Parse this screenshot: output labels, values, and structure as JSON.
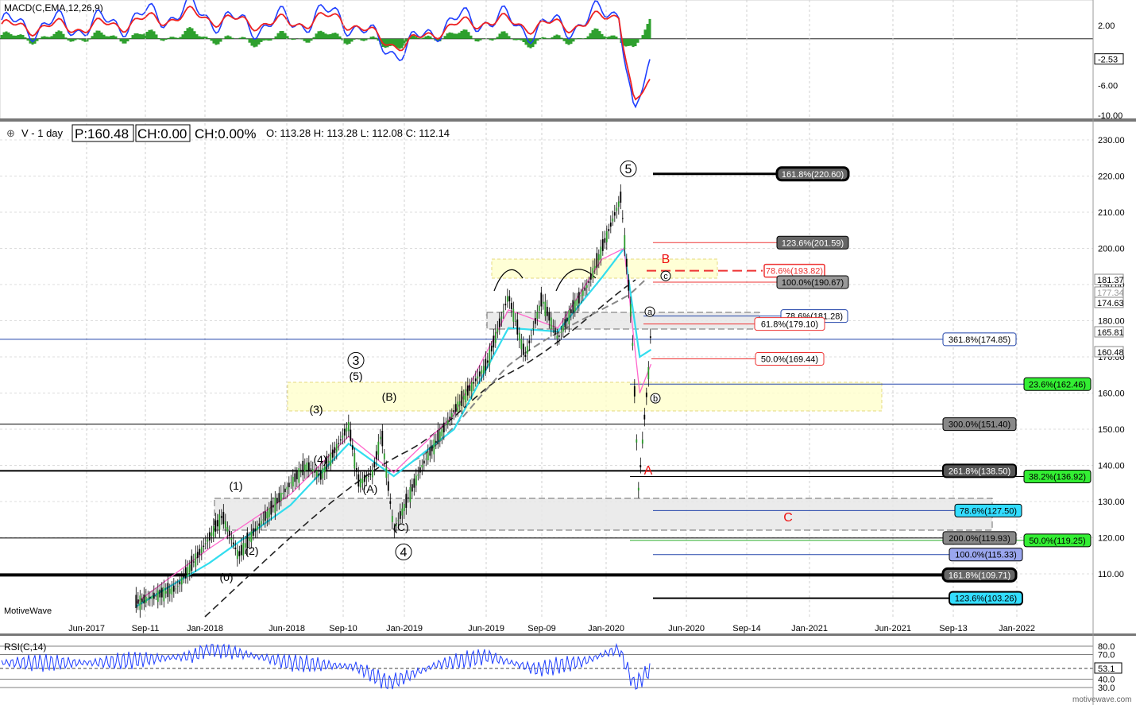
{
  "header": {
    "symbol_label": "V - 1 day",
    "price_label": "P:160.48",
    "change_label": "CH:0.00",
    "change_pct_label": "CH:0.00%",
    "ohlc_label": "O: 113.28  H: 113.28  L: 112.08  C: 112.14"
  },
  "watermark": "MotiveWave",
  "footer_credit": "motivewave.com",
  "colors": {
    "price_up": "#000000",
    "ema_fast": "#ff66cc",
    "ema_slow": "#33ddee",
    "macd_line": "#1f3fff",
    "signal_line": "#ee2222",
    "histogram": "#2ea02e",
    "rsi_line": "#1f3fff",
    "zone_yellow": "#ffffcc",
    "zone_grey": "#e8e8e8"
  },
  "chart_data": [
    {
      "type": "line",
      "title": "MACD(C,EMA,12,26,9)",
      "ytick_labels": [
        "2.00",
        "-2.53",
        "-6.00",
        "-10.00"
      ],
      "series": [
        {
          "name": "MACD",
          "x": [
            "2017-06",
            "2017-09",
            "2017-12",
            "2018-03",
            "2018-06",
            "2018-09",
            "2018-11",
            "2019-01",
            "2019-03",
            "2019-06",
            "2019-09",
            "2019-12",
            "2020-02",
            "2020-03",
            "2020-04"
          ],
          "values": [
            2.0,
            3.0,
            4.0,
            2.0,
            2.5,
            3.5,
            0.0,
            -1.5,
            2.0,
            3.0,
            1.5,
            2.5,
            4.5,
            -11.0,
            -3.0
          ]
        },
        {
          "name": "Signal",
          "x": [
            "2017-06",
            "2017-09",
            "2017-12",
            "2018-03",
            "2018-06",
            "2018-09",
            "2018-11",
            "2019-01",
            "2019-03",
            "2019-06",
            "2019-09",
            "2019-12",
            "2020-02",
            "2020-03",
            "2020-04"
          ],
          "values": [
            1.8,
            2.6,
            3.4,
            2.4,
            2.3,
            3.1,
            0.6,
            -0.8,
            1.4,
            2.7,
            1.9,
            2.2,
            3.8,
            -9.0,
            -5.5
          ]
        }
      ]
    },
    {
      "type": "line",
      "title": "V - 1 day",
      "xtick_labels": [
        "Jun-2017",
        "Sep-11",
        "Jan-2018",
        "Jun-2018",
        "Sep-10",
        "Jan-2019",
        "Jun-2019",
        "Sep-09",
        "Jan-2020",
        "Jun-2020",
        "Sep-14",
        "Jan-2021",
        "Jun-2021",
        "Sep-13",
        "Jan-2022"
      ],
      "ytick_labels": [
        "230.00",
        "220.00",
        "210.00",
        "200.00",
        "190.00",
        "180.00",
        "170.00",
        "160.00",
        "150.00",
        "140.00",
        "130.00",
        "120.00",
        "110.00"
      ],
      "price_tags": [
        "181.37",
        "177.34",
        "174.63",
        "165.81",
        "160.48"
      ],
      "series": [
        {
          "name": "Price",
          "x": [
            "2017-09-01",
            "2017-11-15",
            "2018-01-15",
            "2018-02-08",
            "2018-03-10",
            "2018-04-05",
            "2018-06-15",
            "2018-07-15",
            "2018-08-10",
            "2018-10-01",
            "2018-10-20",
            "2018-11-15",
            "2018-12-01",
            "2018-12-24",
            "2019-02-15",
            "2019-04-15",
            "2019-06-15",
            "2019-07-25",
            "2019-08-25",
            "2019-09-25",
            "2019-10-25",
            "2019-11-20",
            "2019-12-20",
            "2020-01-15",
            "2020-02-19",
            "2020-03-10",
            "2020-03-23",
            "2020-04-01",
            "2020-04-10",
            "2020-04-15"
          ],
          "values": [
            102,
            106,
            120,
            126,
            115,
            121,
            135,
            140,
            137,
            151,
            135,
            138,
            149,
            122,
            140,
            155,
            168,
            187,
            170,
            186,
            175,
            183,
            190,
            200,
            214,
            180,
            133,
            150,
            165,
            178
          ]
        },
        {
          "name": "EMA fast",
          "x": [
            "2017-09-01",
            "2018-01-15",
            "2018-06-15",
            "2018-10-01",
            "2018-12-24",
            "2019-04-15",
            "2019-07-25",
            "2019-10-25",
            "2020-01-15",
            "2020-02-25",
            "2020-03-25",
            "2020-04-15"
          ],
          "values": [
            102,
            117,
            132,
            148,
            138,
            154,
            183,
            178,
            197,
            200,
            160,
            168
          ]
        },
        {
          "name": "EMA slow",
          "x": [
            "2017-09-01",
            "2018-01-15",
            "2018-06-15",
            "2018-10-01",
            "2018-12-24",
            "2019-04-15",
            "2019-07-25",
            "2019-10-25",
            "2020-01-15",
            "2020-02-25",
            "2020-03-25",
            "2020-04-15"
          ],
          "values": [
            101,
            113,
            129,
            146,
            137,
            150,
            178,
            177,
            192,
            200,
            170,
            172
          ]
        }
      ],
      "fib_levels": [
        {
          "label": "161.8%(220.60)",
          "value": 220.6
        },
        {
          "label": "123.6%(201.59)",
          "value": 201.59
        },
        {
          "label": "78.6%(193.82)",
          "value": 193.82
        },
        {
          "label": "100.0%(190.67)",
          "value": 190.67
        },
        {
          "label": "78.6%(181.28)",
          "value": 181.28
        },
        {
          "label": "61.8%(179.10)",
          "value": 179.1
        },
        {
          "label": "361.8%(174.85)",
          "value": 174.85
        },
        {
          "label": "50.0%(169.44)",
          "value": 169.44
        },
        {
          "label": "23.6%(162.46)",
          "value": 162.46
        },
        {
          "label": "300.0%(151.40)",
          "value": 151.4
        },
        {
          "label": "261.8%(138.50)",
          "value": 138.5
        },
        {
          "label": "38.2%(136.92)",
          "value": 136.92
        },
        {
          "label": "78.6%(127.50)",
          "value": 127.5
        },
        {
          "label": "200.0%(119.93)",
          "value": 119.93
        },
        {
          "label": "50.0%(119.25)",
          "value": 119.25
        },
        {
          "label": "100.0%(115.33)",
          "value": 115.33
        },
        {
          "label": "161.8%(109.71)",
          "value": 109.71
        },
        {
          "label": "123.6%(103.26)",
          "value": 103.26
        }
      ],
      "wave_labels": [
        "(1)",
        "(2)",
        "(0)",
        "(3)",
        "(4)",
        "(5)",
        "3",
        "(A)",
        "(B)",
        "(C)",
        "4",
        "5",
        "a",
        "b",
        "c",
        "A",
        "B",
        "C"
      ]
    },
    {
      "type": "line",
      "title": "RSI(C,14)",
      "ytick_labels": [
        "80.0",
        "70.0",
        "53.1",
        "40.0",
        "30.0"
      ],
      "series": [
        {
          "name": "RSI",
          "x": [
            "2017-06",
            "2017-12",
            "2018-01",
            "2018-06",
            "2018-10",
            "2018-12",
            "2019-03",
            "2019-06",
            "2019-09",
            "2019-12",
            "2020-02",
            "2020-03",
            "2020-04"
          ],
          "values": [
            60,
            68,
            78,
            60,
            55,
            35,
            58,
            68,
            52,
            62,
            77,
            32,
            53
          ]
        }
      ]
    }
  ]
}
